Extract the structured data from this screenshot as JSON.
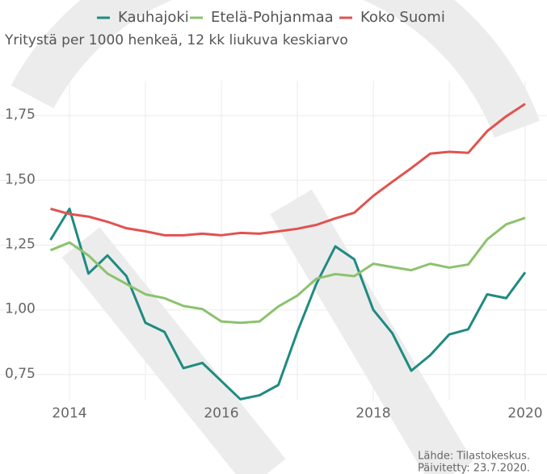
{
  "chart_data": {
    "type": "line",
    "subtitle": "Yritystä per 1000 henkeä, 12 kk liukuva keskiarvo",
    "source": "Lähde: Tilastokeskus.",
    "updated": "Päivitetty: 23.7.2020.",
    "x": [
      2013.75,
      2014,
      2014.25,
      2014.5,
      2014.75,
      2015,
      2015.25,
      2015.5,
      2015.75,
      2016,
      2016.25,
      2016.5,
      2016.75,
      2017,
      2017.25,
      2017.5,
      2017.75,
      2018,
      2018.25,
      2018.5,
      2018.75,
      2019,
      2019.25,
      2019.5,
      2019.75,
      2020
    ],
    "series": [
      {
        "name": "Kauhajoki",
        "color": "#1f8b80",
        "values": [
          1.27,
          1.39,
          1.14,
          1.21,
          1.13,
          0.95,
          0.915,
          0.775,
          0.795,
          0.725,
          0.655,
          0.67,
          0.71,
          0.915,
          1.1,
          1.245,
          1.195,
          1.0,
          0.91,
          0.765,
          0.825,
          0.905,
          0.925,
          1.06,
          1.045,
          1.145
        ]
      },
      {
        "name": "Etelä-Pohjanmaa",
        "color": "#8cc26e",
        "values": [
          1.23,
          1.26,
          1.21,
          1.14,
          1.1,
          1.06,
          1.045,
          1.015,
          1.003,
          0.955,
          0.95,
          0.955,
          1.013,
          1.055,
          1.12,
          1.138,
          1.13,
          1.178,
          1.165,
          1.153,
          1.178,
          1.163,
          1.175,
          1.272,
          1.33,
          1.355
        ]
      },
      {
        "name": "Koko Suomi",
        "color": "#e0534f",
        "values": [
          1.39,
          1.37,
          1.36,
          1.34,
          1.315,
          1.303,
          1.288,
          1.288,
          1.294,
          1.288,
          1.297,
          1.294,
          1.303,
          1.313,
          1.328,
          1.353,
          1.375,
          1.44,
          1.494,
          1.547,
          1.603,
          1.61,
          1.606,
          1.69,
          1.747,
          1.795
        ]
      }
    ],
    "xlim": [
      2013.1,
      2020.25
    ],
    "ylim": [
      0.65,
      1.88
    ],
    "xticks": [
      2014,
      2016,
      2018,
      2020
    ],
    "xminor": [
      2015,
      2017,
      2019
    ],
    "yticks": [
      {
        "value": 0.75,
        "label": "0,75"
      },
      {
        "value": 1.0,
        "label": "1,00"
      },
      {
        "value": 1.25,
        "label": "1,25"
      },
      {
        "value": 1.5,
        "label": "1,50"
      },
      {
        "value": 1.75,
        "label": "1,75"
      }
    ],
    "grid": true
  }
}
